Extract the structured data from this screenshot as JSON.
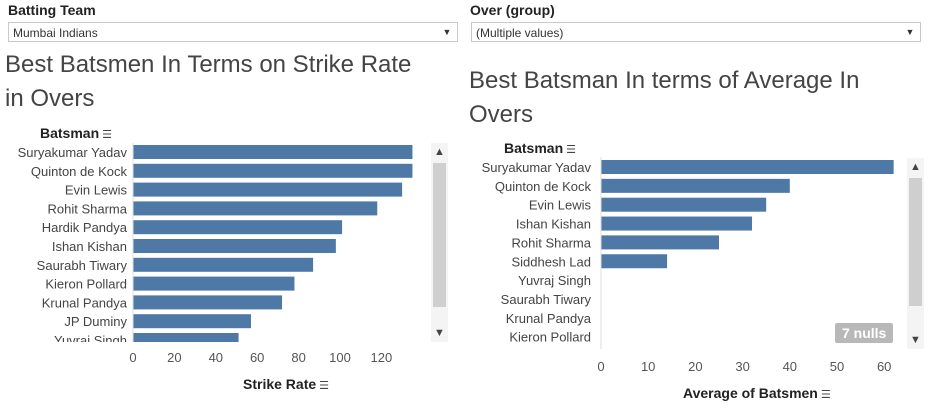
{
  "filters": {
    "batting_team": {
      "label": "Batting Team",
      "value": "Mumbai Indians"
    },
    "over_group": {
      "label": "Over (group)",
      "value": "(Multiple values)"
    }
  },
  "icons": {
    "dropdown": "chevron-down-icon",
    "sort": "sort-icon",
    "scroll_up": "chevron-up-icon",
    "scroll_down": "chevron-down-icon"
  },
  "colors": {
    "bar": "#4e79a7"
  },
  "chart_data": [
    {
      "type": "bar",
      "orientation": "horizontal",
      "title": "Best Batsmen In Terms on Strike Rate in Overs",
      "title_lines": [
        "Best Batsmen In Terms on Strike Rate",
        "in Overs"
      ],
      "ylabel": "Batsman",
      "xlabel": "Strike Rate",
      "categories": [
        "Suryakumar Yadav",
        "Quinton de Kock",
        "Evin Lewis",
        "Rohit Sharma",
        "Hardik Pandya",
        "Ishan Kishan",
        "Saurabh Tiwary",
        "Kieron Pollard",
        "Krunal Pandya",
        "JP Duminy",
        "Yuvraj Singh"
      ],
      "values": [
        135,
        135,
        130,
        118,
        101,
        98,
        87,
        78,
        72,
        57,
        51
      ],
      "xlim": [
        0,
        140
      ],
      "ticks": [
        0,
        20,
        40,
        60,
        80,
        100,
        120
      ]
    },
    {
      "type": "bar",
      "orientation": "horizontal",
      "title": "Best Batsman In terms of Average In Overs",
      "title_lines": [
        "Best Batsman In terms of Average In",
        "Overs"
      ],
      "ylabel": "Batsman",
      "xlabel": "Average of Batsmen",
      "categories": [
        "Suryakumar Yadav",
        "Quinton de Kock",
        "Evin Lewis",
        "Ishan Kishan",
        "Rohit Sharma",
        "Siddhesh Lad",
        "Yuvraj Singh",
        "Saurabh Tiwary",
        "Krunal Pandya",
        "Kieron Pollard"
      ],
      "values": [
        62,
        40,
        35,
        32,
        25,
        14,
        null,
        null,
        null,
        null
      ],
      "xlim": [
        0,
        64
      ],
      "ticks": [
        0,
        10,
        20,
        30,
        40,
        50,
        60
      ],
      "nulls_label": "7 nulls"
    }
  ]
}
